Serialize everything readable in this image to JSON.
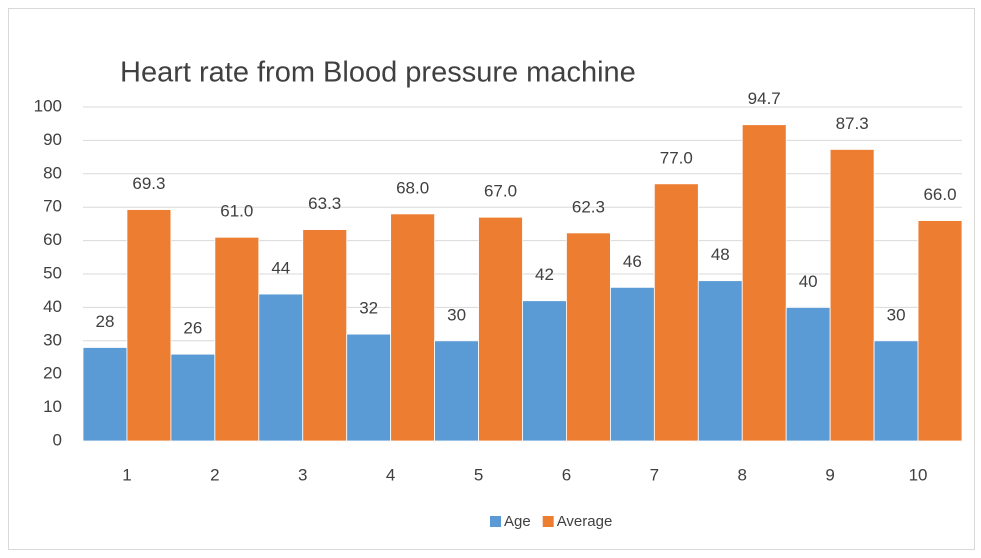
{
  "chart_data": {
    "type": "bar",
    "title": "Heart rate from Blood pressure  machine",
    "categories": [
      "1",
      "2",
      "3",
      "4",
      "5",
      "6",
      "7",
      "8",
      "9",
      "10"
    ],
    "series": [
      {
        "name": "Age",
        "color": "#5b9bd5",
        "values": [
          28,
          26,
          44,
          32,
          30,
          42,
          46,
          48,
          40,
          30
        ]
      },
      {
        "name": "Average",
        "color": "#ed7d31",
        "values": [
          69.3,
          61,
          63.3,
          68,
          67,
          62.3,
          77,
          94.7,
          87.3,
          66
        ],
        "value_labels": [
          "69.3",
          "61.0",
          "63.3",
          "68.0",
          "67.0",
          "62.3",
          "77.0",
          "94.7",
          "87.3",
          "66.0"
        ]
      }
    ],
    "ylim": [
      0,
      100
    ],
    "yticks": [
      0,
      10,
      20,
      30,
      40,
      50,
      60,
      70,
      80,
      90,
      100
    ],
    "grid": true,
    "legend": "bottom"
  }
}
